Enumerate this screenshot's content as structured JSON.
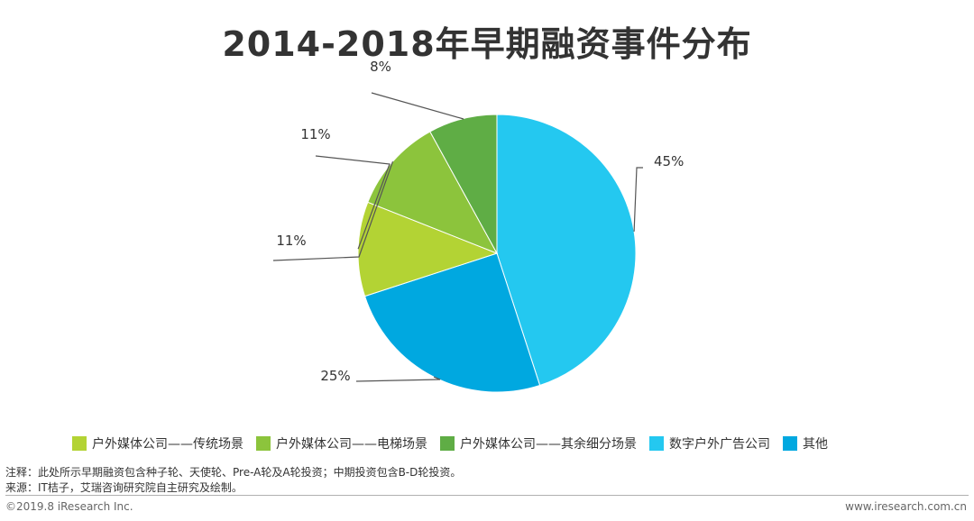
{
  "chart_data": {
    "type": "pie",
    "title": "2014-2018年早期融资事件分布",
    "slices": [
      {
        "label": "数字户外广告公司",
        "value": 45,
        "display": "45%",
        "color": "#24c8f0"
      },
      {
        "label": "其他",
        "value": 25,
        "display": "25%",
        "color": "#00a8e0"
      },
      {
        "label": "户外媒体公司——传统场景",
        "value": 11,
        "display": "11%",
        "color": "#b3d334"
      },
      {
        "label": "户外媒体公司——电梯场景",
        "value": 11,
        "display": "11%",
        "color": "#8cc43c"
      },
      {
        "label": "户外媒体公司——其余细分场景",
        "value": 8,
        "display": "8%",
        "color": "#5fad45"
      }
    ],
    "legend": [
      {
        "label": "户外媒体公司——传统场景",
        "color": "#b3d334"
      },
      {
        "label": "户外媒体公司——电梯场景",
        "color": "#8cc43c"
      },
      {
        "label": "户外媒体公司——其余细分场景",
        "color": "#5fad45"
      },
      {
        "label": "数字户外广告公司",
        "color": "#24c8f0"
      },
      {
        "label": "其他",
        "color": "#00a8e0"
      }
    ]
  },
  "notes": {
    "note1": "注释：此处所示早期融资包含种子轮、天使轮、Pre-A轮及A轮投资；中期投资包含B-D轮投资。",
    "note2": "来源：IT桔子，艾瑞咨询研究院自主研究及绘制。"
  },
  "footer": {
    "copyright": "©2019.8 iResearch Inc.",
    "website": "www.iresearch.com.cn"
  }
}
